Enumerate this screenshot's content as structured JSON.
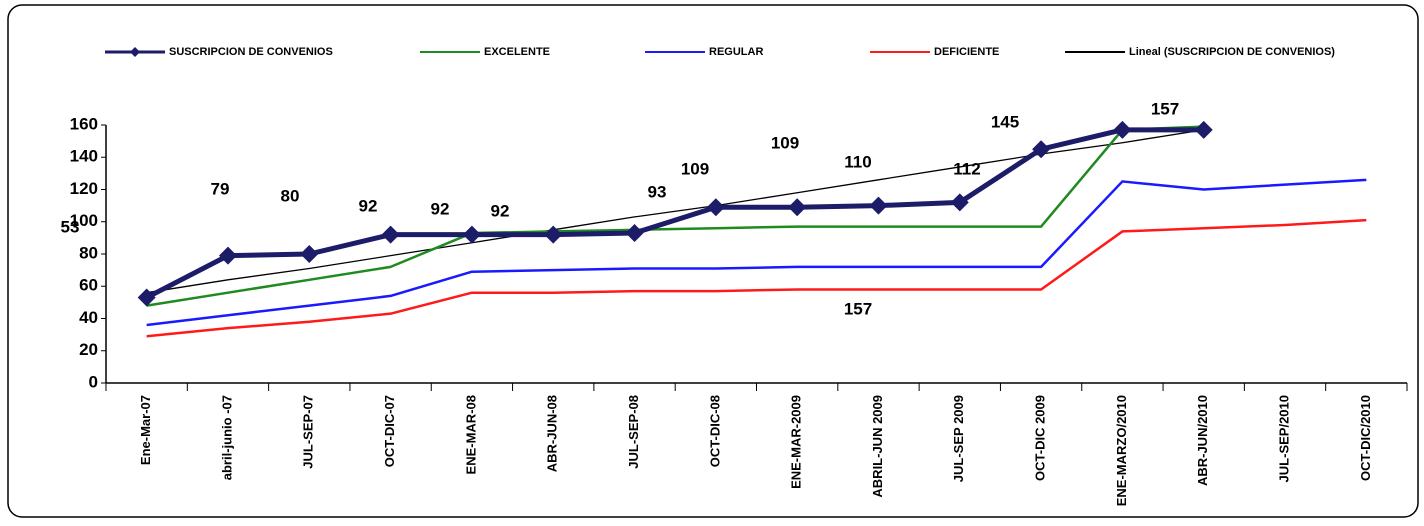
{
  "chart_data": {
    "type": "line",
    "categories": [
      "Ene-Mar-07",
      "abril-junio -07",
      "JUL-SEP-07",
      "OCT-DIC-07",
      "ENE-MAR-08",
      "ABR-JUN-08",
      "JUL-SEP-08",
      "OCT-DIC-08",
      "ENE-MAR-2009",
      "ABRIL-JUN 2009",
      "JUL-SEP 2009",
      "OCT-DIC 2009",
      "ENE-MARZO/2010",
      "ABR-JUN/2010",
      "JUL-SEP/2010",
      "OCT-DIC/2010"
    ],
    "series": [
      {
        "name": "SUSCRIPCION DE CONVENIOS",
        "color": "#1c1c68",
        "marker": "diamond",
        "data_labels": true,
        "values": [
          53,
          79,
          80,
          92,
          92,
          92,
          93,
          109,
          109,
          110,
          112,
          145,
          157,
          157,
          null,
          null
        ]
      },
      {
        "name": "EXCELENTE",
        "color": "#1f8a1f",
        "values": [
          48,
          56,
          64,
          72,
          93,
          94,
          95,
          96,
          97,
          97,
          97,
          97,
          157,
          159,
          null,
          null
        ]
      },
      {
        "name": "REGULAR",
        "color": "#1a1aff",
        "values": [
          36,
          42,
          48,
          54,
          69,
          70,
          71,
          71,
          72,
          72,
          72,
          72,
          125,
          120,
          123,
          126
        ]
      },
      {
        "name": "DEFICIENTE",
        "color": "#ff1a1a",
        "values": [
          29,
          34,
          38,
          43,
          56,
          56,
          57,
          57,
          58,
          58,
          58,
          58,
          94,
          96,
          98,
          101
        ]
      },
      {
        "name": "Lineal (SUSCRIPCION DE CONVENIOS)",
        "color": "#000000",
        "values": [
          56,
          64,
          71,
          79,
          87,
          95,
          103,
          110,
          118,
          126,
          134,
          142,
          149,
          157,
          null,
          null
        ]
      }
    ],
    "ylim": [
      0,
      160
    ],
    "yticks": [
      0,
      20,
      40,
      60,
      80,
      100,
      120,
      140,
      160
    ],
    "legend": "top"
  }
}
